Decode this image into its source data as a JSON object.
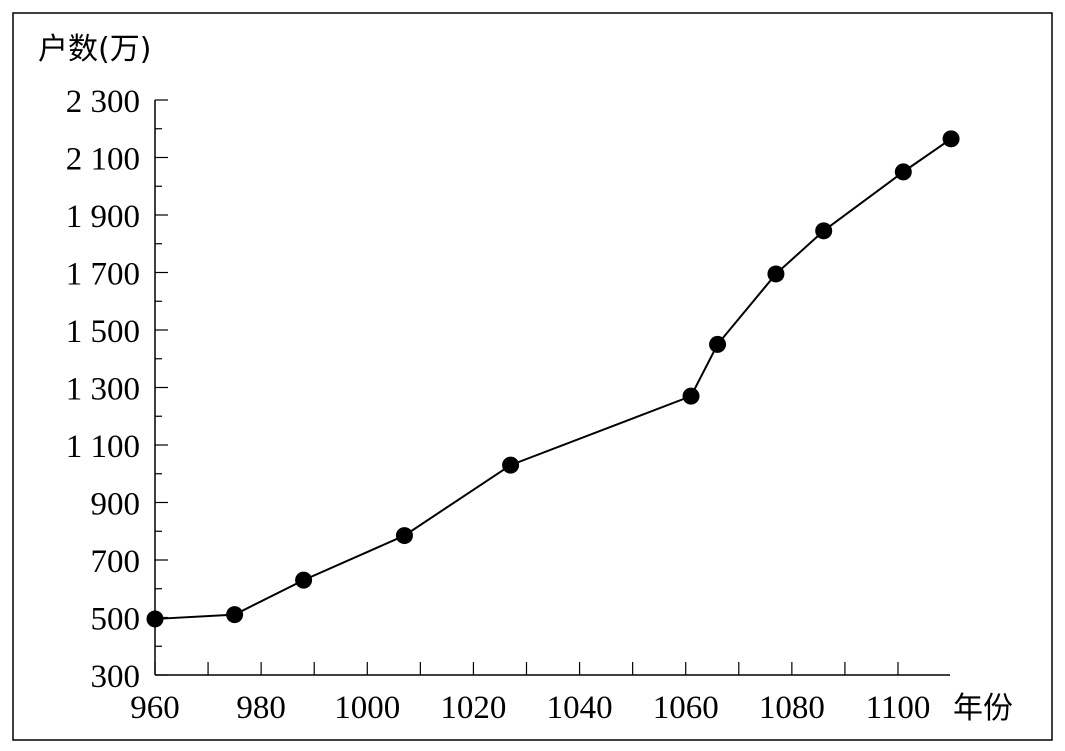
{
  "chart_data": {
    "type": "line",
    "title": "",
    "xlabel": "年份",
    "ylabel": "户数(万)",
    "xlim": [
      960,
      1110
    ],
    "ylim": [
      300,
      2300
    ],
    "x_ticks": [
      960,
      980,
      1000,
      1020,
      1040,
      1060,
      1080,
      1100
    ],
    "x_tick_labels": [
      "960",
      "980",
      "1000",
      "1020",
      "1040",
      "1060",
      "1080",
      "1100"
    ],
    "x_minor_step": 10,
    "y_ticks": [
      300,
      500,
      700,
      900,
      1100,
      1300,
      1500,
      1700,
      1900,
      2100,
      2300
    ],
    "y_tick_labels": [
      "300",
      "500",
      "700",
      "900",
      "1 100",
      "1 300",
      "1 500",
      "1 700",
      "1 900",
      "2 100",
      "2 300"
    ],
    "y_minor_step": 100,
    "grid": false,
    "series": [
      {
        "color": "#000000",
        "marker": "filled-circle",
        "x": [
          960,
          975,
          988,
          1007,
          1027,
          1061,
          1066,
          1077,
          1086,
          1101,
          1110
        ],
        "y": [
          495,
          510,
          630,
          785,
          1030,
          1270,
          1450,
          1695,
          1845,
          2050,
          2165
        ]
      }
    ]
  }
}
